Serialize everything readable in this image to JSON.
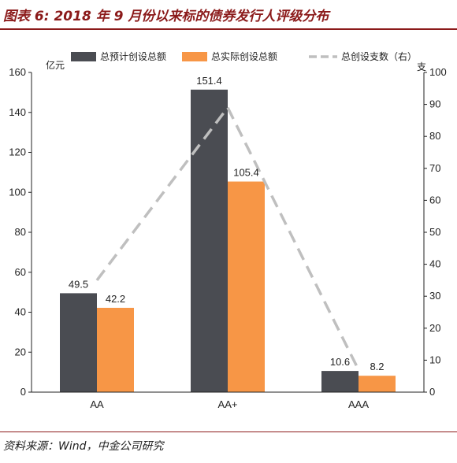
{
  "header": {
    "title": "图表 6: 2018 年 9 月份以来标的债券发行人评级分布"
  },
  "footer": {
    "source": "资料来源：Wind，中金公司研究"
  },
  "chart_data": {
    "type": "bar",
    "categories": [
      "AA",
      "AA+",
      "AAA"
    ],
    "series": [
      {
        "name": "总预计创设总额",
        "type": "bar",
        "axis": "left",
        "color": "#4a4c52",
        "values": [
          49.5,
          151.4,
          10.6
        ]
      },
      {
        "name": "总实际创设总额",
        "type": "bar",
        "axis": "left",
        "color": "#f79646",
        "values": [
          42.2,
          105.4,
          8.2
        ]
      },
      {
        "name": "总创设支数（右）",
        "type": "line",
        "style": "dashed",
        "axis": "right",
        "color": "#bfbfbf",
        "values": [
          35,
          89,
          7
        ]
      }
    ],
    "left_axis": {
      "unit": "亿元",
      "ylim": [
        0,
        160
      ],
      "ticks": [
        "0",
        "20",
        "40",
        "60",
        "80",
        "100",
        "120",
        "140",
        "160"
      ]
    },
    "right_axis": {
      "unit": "支",
      "ylim": [
        0,
        100
      ],
      "ticks": [
        "0",
        "10",
        "20",
        "30",
        "40",
        "50",
        "60",
        "70",
        "80",
        "90",
        "100"
      ]
    },
    "data_labels": [
      [
        "49.5",
        "151.4",
        "10.6"
      ],
      [
        "42.2",
        "105.4",
        "8.2"
      ]
    ],
    "legend_position": "top",
    "grid": false
  }
}
